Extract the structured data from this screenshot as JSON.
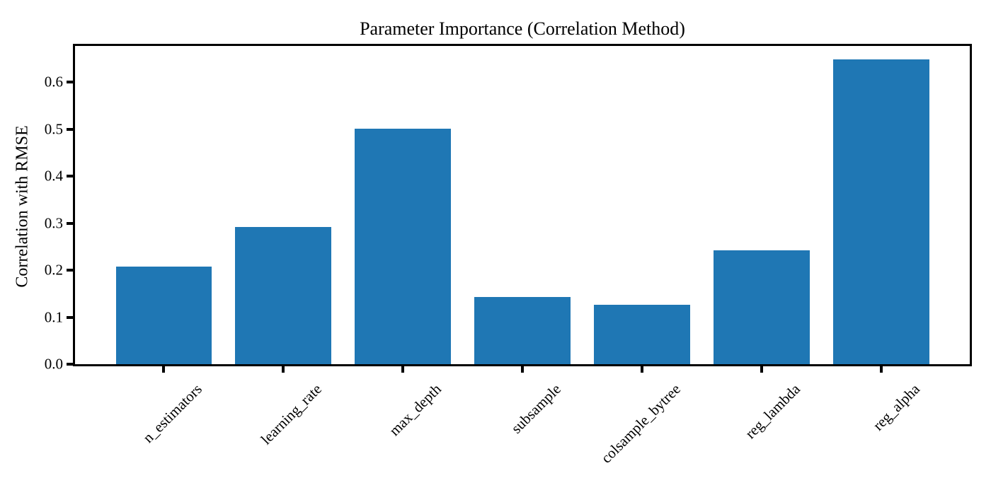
{
  "chart_data": {
    "type": "bar",
    "title": "Parameter Importance (Correlation Method)",
    "xlabel": "",
    "ylabel": "Correlation with RMSE",
    "categories": [
      "n_estimators",
      "learning_rate",
      "max_depth",
      "subsample",
      "colsample_bytree",
      "reg_lambda",
      "reg_alpha"
    ],
    "values": [
      0.208,
      0.292,
      0.501,
      0.143,
      0.126,
      0.243,
      0.648
    ],
    "ytick_labels": [
      "0.0",
      "0.1",
      "0.2",
      "0.3",
      "0.4",
      "0.5",
      "0.6"
    ],
    "ylim": [
      0,
      0.677
    ],
    "bar_color": "#1f77b4",
    "axis_color": "#000000",
    "grid": false,
    "legend_position": "none",
    "x_tick_rotation": 45,
    "bar_width_fraction": 0.8
  }
}
